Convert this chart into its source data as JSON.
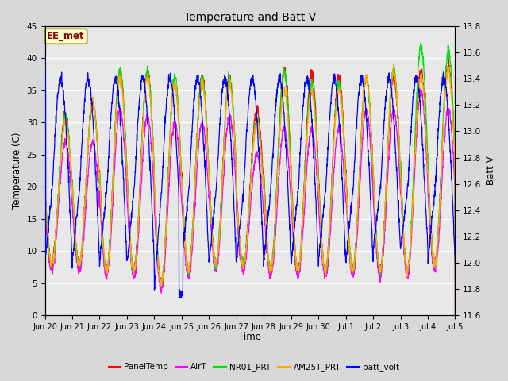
{
  "title": "Temperature and Batt V",
  "xlabel": "Time",
  "ylabel_left": "Temperature (C)",
  "ylabel_right": "Batt V",
  "ylim_left": [
    0,
    45
  ],
  "ylim_right": [
    11.6,
    13.8
  ],
  "yticks_left": [
    0,
    5,
    10,
    15,
    20,
    25,
    30,
    35,
    40,
    45
  ],
  "yticks_right": [
    11.6,
    11.8,
    12.0,
    12.2,
    12.4,
    12.6,
    12.8,
    13.0,
    13.2,
    13.4,
    13.6,
    13.8
  ],
  "xtick_labels": [
    "Jun 20",
    "Jun 21",
    "Jun 22",
    "Jun 23",
    "Jun 24",
    "Jun 25",
    "Jun 26",
    "Jun 27",
    "Jun 28",
    "Jun 29",
    "Jun 30",
    "Jul 1",
    "Jul 2",
    "Jul 3",
    "Jul 4",
    "Jul 5"
  ],
  "annotation_text": "EE_met",
  "annotation_color": "#8B0000",
  "fig_bg_color": "#d8d8d8",
  "plot_bg_color": "#e8e8e8",
  "inner_bg_color": "#dcdcdc",
  "grid_color": "#ffffff",
  "colors": {
    "PanelTemp": "#ff0000",
    "AirT": "#ff00ff",
    "NR01_PRT": "#00dd00",
    "AM25T_PRT": "#ffaa00",
    "batt_volt": "#0000ff"
  },
  "legend_labels": [
    "PanelTemp",
    "AirT",
    "NR01_PRT",
    "AM25T_PRT",
    "batt_volt"
  ]
}
